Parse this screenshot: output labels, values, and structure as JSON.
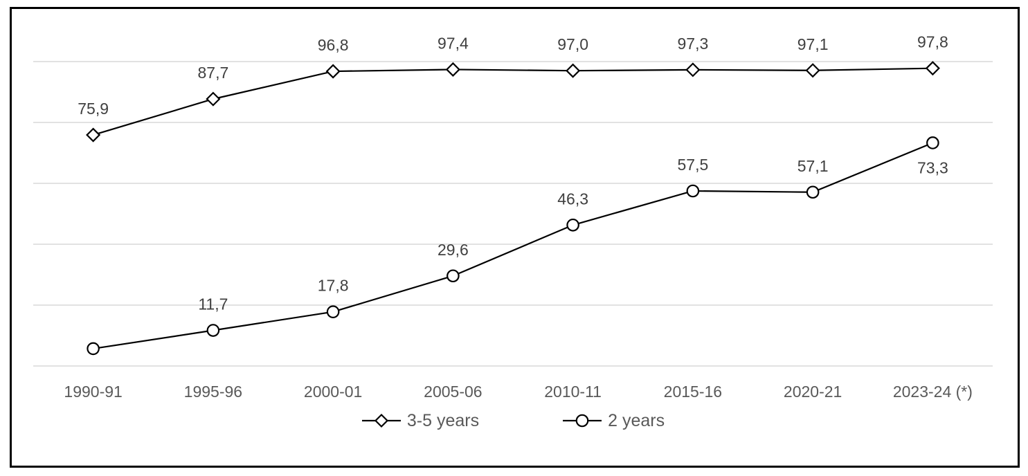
{
  "chart_data": {
    "type": "line",
    "title": "",
    "xlabel": "",
    "ylabel": "",
    "categories": [
      "1990-91",
      "1995-96",
      "2000-01",
      "2005-06",
      "2010-11",
      "2015-16",
      "2020-21",
      "2023-24 (*)"
    ],
    "series": [
      {
        "name": "3-5 years",
        "marker": "diamond",
        "values": [
          75.9,
          87.7,
          96.8,
          97.4,
          97.0,
          97.3,
          97.1,
          97.8
        ],
        "labels": [
          "75,9",
          "87,7",
          "96,8",
          "97,4",
          "97,0",
          "97,3",
          "97,1",
          "97,8"
        ],
        "label_positions": [
          "above",
          "above",
          "above",
          "above",
          "above",
          "above",
          "above",
          "above"
        ]
      },
      {
        "name": "2 years",
        "marker": "circle",
        "values": [
          5.7,
          11.7,
          17.8,
          29.6,
          46.3,
          57.5,
          57.1,
          73.3
        ],
        "labels": [
          "",
          "11,7",
          "17,8",
          "29,6",
          "46,3",
          "57,5",
          "57,1",
          "73,3"
        ],
        "label_positions": [
          "above",
          "above",
          "above",
          "above",
          "above",
          "above",
          "above",
          "below"
        ]
      }
    ],
    "ylim": [
      0,
      100
    ],
    "grid_step": 20,
    "grid": true,
    "legend_position": "bottom",
    "colors": {
      "line": "#000000",
      "gridline": "#d9d9d9",
      "data_label": "#404040",
      "axis_label": "#595959",
      "legend_text": "#595959",
      "frame_border": "#000000",
      "background": "#ffffff"
    }
  }
}
